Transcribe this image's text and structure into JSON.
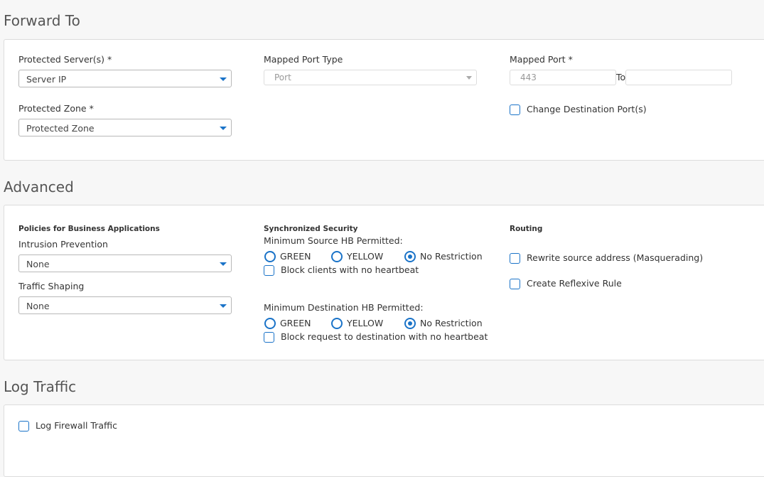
{
  "forward_to": {
    "title": "Forward To",
    "protected_servers": {
      "label": "Protected Server(s) *",
      "value": "Server IP"
    },
    "protected_zone": {
      "label": "Protected Zone *",
      "value": "Protected Zone"
    },
    "mapped_port_type": {
      "label": "Mapped Port Type",
      "value": "Port"
    },
    "mapped_port": {
      "label": "Mapped Port *",
      "placeholder": "443",
      "to_label": "To",
      "to_value": ""
    },
    "change_destination_port": {
      "label": "Change Destination Port(s)",
      "checked": false
    }
  },
  "advanced": {
    "title": "Advanced",
    "policies_heading": "Policies for Business Applications",
    "intrusion_prevention": {
      "label": "Intrusion Prevention",
      "value": "None"
    },
    "traffic_shaping": {
      "label": "Traffic Shaping",
      "value": "None"
    },
    "sync_heading": "Synchronized Security",
    "min_source": {
      "label": "Minimum Source HB Permitted:",
      "options": [
        "GREEN",
        "YELLOW",
        "No Restriction"
      ],
      "selected": "No Restriction",
      "block_label": "Block clients with no heartbeat",
      "block_checked": false
    },
    "min_dest": {
      "label": "Minimum Destination HB Permitted:",
      "options": [
        "GREEN",
        "YELLOW",
        "No Restriction"
      ],
      "selected": "No Restriction",
      "block_label": "Block request to destination with no heartbeat",
      "block_checked": false
    },
    "routing_heading": "Routing",
    "rewrite_source": {
      "label": "Rewrite source address (Masquerading)",
      "checked": false
    },
    "reflexive_rule": {
      "label": "Create Reflexive Rule",
      "checked": false
    }
  },
  "log_traffic": {
    "title": "Log Traffic",
    "log_firewall": {
      "label": "Log Firewall Traffic",
      "checked": false
    }
  },
  "colors": {
    "accent": "#1a73c8"
  }
}
